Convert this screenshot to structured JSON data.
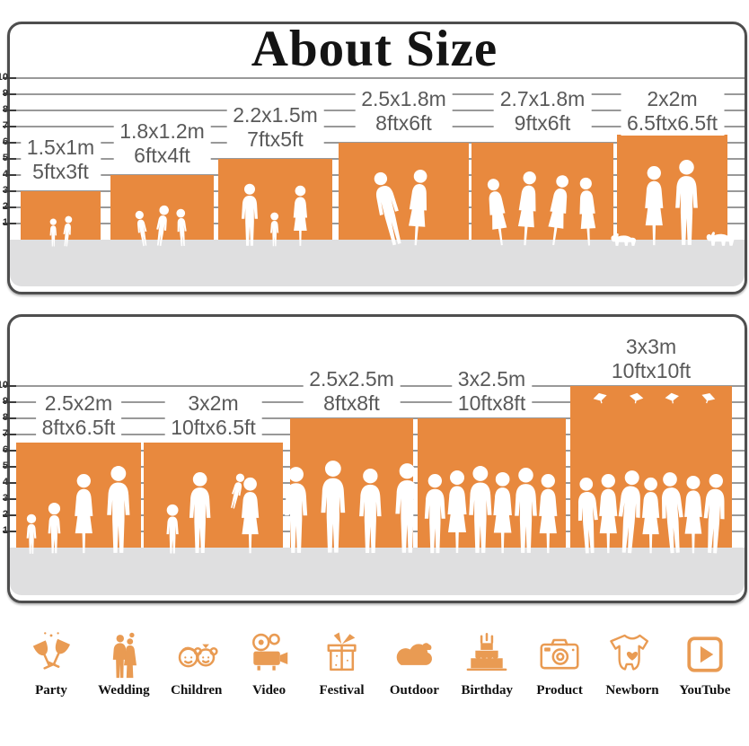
{
  "title": "About Size",
  "colors": {
    "block_orange": "#E8893E",
    "icon_orange": "#E99B53",
    "floor_gray": "#DFDFE0",
    "border_gray": "#4E4E4E",
    "label_gray": "#595959"
  },
  "axis_labels": [
    "10",
    "9",
    "8",
    "7",
    "6",
    "5",
    "4",
    "3",
    "2",
    "1"
  ],
  "panels": [
    {
      "name": "backdrop-sizes-small",
      "blocks": [
        {
          "metric": "1.5x1m",
          "imperial": "5ftx3ft",
          "scene": "children-sitting"
        },
        {
          "metric": "1.8x1.2m",
          "imperial": "6ftx4ft",
          "scene": "children-running"
        },
        {
          "metric": "2.2x1.5m",
          "imperial": "7ftx5ft",
          "scene": "family-holding-hands"
        },
        {
          "metric": "2.5x1.8m",
          "imperial": "8ftx6ft",
          "scene": "wedding-couple"
        },
        {
          "metric": "2.7x1.8m",
          "imperial": "9ftx6ft",
          "scene": "dancing-group"
        },
        {
          "metric": "2x2m",
          "imperial": "6.5ftx6.5ft",
          "scene": "couple-with-dogs"
        }
      ]
    },
    {
      "name": "backdrop-sizes-large",
      "blocks": [
        {
          "metric": "2.5x2m",
          "imperial": "8ftx6.5ft",
          "scene": "family-standing"
        },
        {
          "metric": "3x2m",
          "imperial": "10ftx6.5ft",
          "scene": "family-lifting-child"
        },
        {
          "metric": "2.5x2.5m",
          "imperial": "8ftx8ft",
          "scene": "adults-group"
        },
        {
          "metric": "3x2.5m",
          "imperial": "10ftx8ft",
          "scene": "crowd"
        },
        {
          "metric": "3x3m",
          "imperial": "10ftx10ft",
          "scene": "graduation-crowd"
        }
      ]
    }
  ],
  "categories": [
    {
      "label": "Party",
      "icon": "party-icon"
    },
    {
      "label": "Wedding",
      "icon": "wedding-icon"
    },
    {
      "label": "Children",
      "icon": "children-icon"
    },
    {
      "label": "Video",
      "icon": "video-icon"
    },
    {
      "label": "Festival",
      "icon": "festival-icon"
    },
    {
      "label": "Outdoor",
      "icon": "outdoor-icon"
    },
    {
      "label": "Birthday",
      "icon": "birthday-icon"
    },
    {
      "label": "Product",
      "icon": "product-icon"
    },
    {
      "label": "Newborn",
      "icon": "newborn-icon"
    },
    {
      "label": "YouTube",
      "icon": "youtube-icon"
    }
  ]
}
